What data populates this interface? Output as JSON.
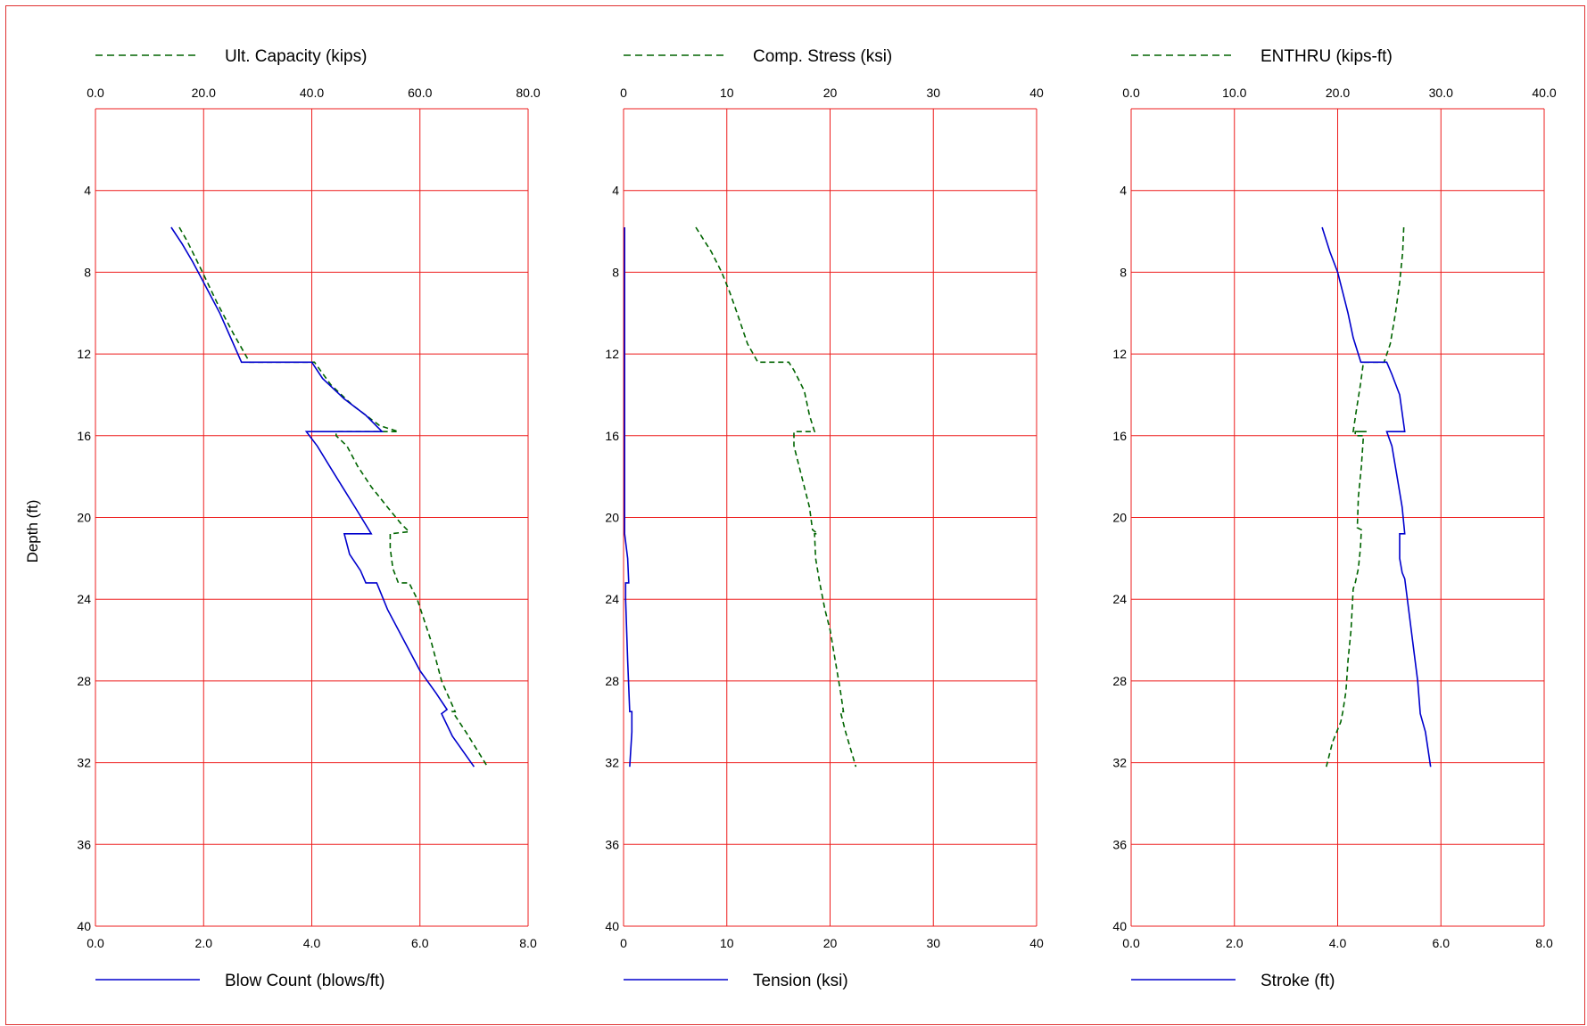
{
  "depth_label": "Depth (ft)",
  "chart_data": [
    {
      "type": "line",
      "ylabel": "Depth (ft)",
      "ylim": [
        40,
        0
      ],
      "y_ticks": [
        "4",
        "8",
        "12",
        "16",
        "20",
        "24",
        "28",
        "32",
        "36",
        "40"
      ],
      "grid": true,
      "top_axis": {
        "label": "Ult. Capacity (kips)",
        "range": [
          0,
          80
        ],
        "ticks": [
          "0.0",
          "20.0",
          "40.0",
          "60.0",
          "80.0"
        ],
        "color": "#006400",
        "style": "dashed",
        "series": {
          "name": "Ult. Capacity (kips)",
          "points": [
            [
              15.5,
              5.8
            ],
            [
              17,
              6.5
            ],
            [
              19.8,
              8
            ],
            [
              22.5,
              9.5
            ],
            [
              25.5,
              11
            ],
            [
              28.5,
              12.4
            ],
            [
              40.5,
              12.4
            ],
            [
              43.5,
              13.5
            ],
            [
              47.5,
              14.5
            ],
            [
              52.5,
              15.5
            ],
            [
              56,
              15.8
            ],
            [
              52,
              15.8
            ],
            [
              44.5,
              15.8
            ],
            [
              44.5,
              16
            ],
            [
              46.5,
              16.5
            ],
            [
              48.5,
              17.5
            ],
            [
              51,
              18.5
            ],
            [
              54,
              19.5
            ],
            [
              56.5,
              20.3
            ],
            [
              58,
              20.7
            ],
            [
              54.5,
              20.8
            ],
            [
              54.5,
              21.5
            ],
            [
              55,
              22.5
            ],
            [
              56,
              23.2
            ],
            [
              58,
              23.2
            ],
            [
              59.5,
              24
            ],
            [
              62,
              26
            ],
            [
              64,
              28
            ],
            [
              66.5,
              29.5
            ],
            [
              66,
              29.5
            ],
            [
              68.5,
              30.5
            ],
            [
              72.5,
              32.2
            ]
          ]
        }
      },
      "bottom_axis": {
        "label": "Blow Count (blows/ft)",
        "range": [
          0,
          8
        ],
        "ticks": [
          "0.0",
          "2.0",
          "4.0",
          "6.0",
          "8.0"
        ],
        "color": "#0000cd",
        "style": "solid",
        "series": {
          "name": "Blow Count (blows/ft)",
          "points": [
            [
              1.4,
              5.8
            ],
            [
              1.6,
              6.6
            ],
            [
              1.8,
              7.5
            ],
            [
              2.0,
              8.5
            ],
            [
              2.3,
              10
            ],
            [
              2.7,
              12.4
            ],
            [
              4.0,
              12.4
            ],
            [
              4.2,
              13.2
            ],
            [
              4.6,
              14.2
            ],
            [
              5.0,
              15
            ],
            [
              5.3,
              15.8
            ],
            [
              3.9,
              15.8
            ],
            [
              4.1,
              16.5
            ],
            [
              4.4,
              17.8
            ],
            [
              4.8,
              19.5
            ],
            [
              5.1,
              20.8
            ],
            [
              4.6,
              20.8
            ],
            [
              4.7,
              21.8
            ],
            [
              4.9,
              22.6
            ],
            [
              5.0,
              23.2
            ],
            [
              5.2,
              23.2
            ],
            [
              5.4,
              24.5
            ],
            [
              5.7,
              26
            ],
            [
              6.0,
              27.5
            ],
            [
              6.3,
              28.6
            ],
            [
              6.5,
              29.4
            ],
            [
              6.4,
              29.6
            ],
            [
              6.6,
              30.7
            ],
            [
              7.0,
              32.2
            ]
          ]
        }
      }
    },
    {
      "type": "line",
      "ylabel": "Depth (ft)",
      "ylim": [
        40,
        0
      ],
      "y_ticks": [
        "4",
        "8",
        "12",
        "16",
        "20",
        "24",
        "28",
        "32",
        "36",
        "40"
      ],
      "grid": true,
      "top_axis": {
        "label": "Comp. Stress (ksi)",
        "range": [
          0,
          40
        ],
        "ticks": [
          "0",
          "10",
          "20",
          "30",
          "40"
        ],
        "color": "#006400",
        "style": "dashed",
        "series": {
          "name": "Comp. Stress (ksi)",
          "points": [
            [
              7,
              5.8
            ],
            [
              8.5,
              7
            ],
            [
              9.5,
              8
            ],
            [
              10.3,
              9
            ],
            [
              11,
              10
            ],
            [
              12,
              11.5
            ],
            [
              13,
              12.4
            ],
            [
              16,
              12.4
            ],
            [
              16.5,
              12.8
            ],
            [
              17.5,
              13.8
            ],
            [
              18,
              15
            ],
            [
              18.5,
              15.8
            ],
            [
              17.5,
              15.8
            ],
            [
              16.5,
              15.8
            ],
            [
              16.5,
              16.5
            ],
            [
              17,
              17.5
            ],
            [
              17.5,
              18.5
            ],
            [
              18,
              19.5
            ],
            [
              18.3,
              20.6
            ],
            [
              18.8,
              20.8
            ],
            [
              18.5,
              20.8
            ],
            [
              18.6,
              22
            ],
            [
              19,
              23.2
            ],
            [
              19.5,
              24.5
            ],
            [
              20,
              25.5
            ],
            [
              20.5,
              27
            ],
            [
              21,
              28.5
            ],
            [
              21.3,
              29.5
            ],
            [
              21,
              29.5
            ],
            [
              21.5,
              30.5
            ],
            [
              22.5,
              32.2
            ]
          ]
        }
      },
      "bottom_axis": {
        "label": "Tension (ksi)",
        "range": [
          0,
          40
        ],
        "ticks": [
          "0",
          "10",
          "20",
          "30",
          "40"
        ],
        "color": "#0000cd",
        "style": "solid",
        "series": {
          "name": "Tension (ksi)",
          "points": [
            [
              0.1,
              5.8
            ],
            [
              0.1,
              8
            ],
            [
              0.1,
              12
            ],
            [
              0.1,
              16
            ],
            [
              0.1,
              20
            ],
            [
              0.1,
              20.8
            ],
            [
              0.4,
              22
            ],
            [
              0.5,
              23.2
            ],
            [
              0.2,
              23.2
            ],
            [
              0.2,
              24
            ],
            [
              0.4,
              27
            ],
            [
              0.6,
              29.5
            ],
            [
              0.8,
              29.5
            ],
            [
              0.8,
              30.5
            ],
            [
              0.6,
              32.2
            ]
          ]
        }
      }
    },
    {
      "type": "line",
      "ylabel": "Depth (ft)",
      "ylim": [
        40,
        0
      ],
      "y_ticks": [
        "4",
        "8",
        "12",
        "16",
        "20",
        "24",
        "28",
        "32",
        "36",
        "40"
      ],
      "grid": true,
      "top_axis": {
        "label": "ENTHRU (kips-ft)",
        "range": [
          0,
          40
        ],
        "ticks": [
          "0.0",
          "10.0",
          "20.0",
          "30.0",
          "40.0"
        ],
        "color": "#006400",
        "style": "dashed",
        "series": {
          "name": "ENTHRU (kips-ft)",
          "points": [
            [
              26.4,
              5.8
            ],
            [
              26.3,
              7
            ],
            [
              26,
              8.5
            ],
            [
              25.6,
              10
            ],
            [
              25.1,
              11.5
            ],
            [
              24.5,
              12.4
            ],
            [
              22.5,
              12.4
            ],
            [
              22.2,
              13.5
            ],
            [
              21.8,
              14.8
            ],
            [
              21.5,
              15.8
            ],
            [
              22.8,
              15.8
            ],
            [
              21.7,
              15.8
            ],
            [
              21.7,
              16
            ],
            [
              22.5,
              16
            ],
            [
              22.3,
              17.5
            ],
            [
              22,
              19
            ],
            [
              21.9,
              20.5
            ],
            [
              22.3,
              20.6
            ],
            [
              22.2,
              21.5
            ],
            [
              22,
              22.5
            ],
            [
              21.7,
              23.2
            ],
            [
              21.5,
              23.5
            ],
            [
              21.3,
              25.5
            ],
            [
              21,
              27
            ],
            [
              20.8,
              28.5
            ],
            [
              20.5,
              29.5
            ],
            [
              20.3,
              30
            ],
            [
              19.5,
              31
            ],
            [
              18.9,
              32.2
            ]
          ]
        }
      },
      "bottom_axis": {
        "label": "Stroke (ft)",
        "range": [
          0,
          8
        ],
        "ticks": [
          "0.0",
          "2.0",
          "4.0",
          "6.0",
          "8.0"
        ],
        "color": "#0000cd",
        "style": "solid",
        "series": {
          "name": "Stroke (ft)",
          "points": [
            [
              3.7,
              5.8
            ],
            [
              3.85,
              7
            ],
            [
              4.0,
              8
            ],
            [
              4.1,
              9
            ],
            [
              4.2,
              10
            ],
            [
              4.3,
              11.2
            ],
            [
              4.45,
              12.4
            ],
            [
              4.95,
              12.4
            ],
            [
              5.05,
              13
            ],
            [
              5.2,
              14
            ],
            [
              5.3,
              15.8
            ],
            [
              4.95,
              15.8
            ],
            [
              5.05,
              16.5
            ],
            [
              5.15,
              18
            ],
            [
              5.25,
              19.5
            ],
            [
              5.3,
              20.8
            ],
            [
              5.2,
              20.8
            ],
            [
              5.2,
              22
            ],
            [
              5.25,
              22.7
            ],
            [
              5.3,
              23
            ],
            [
              5.35,
              24
            ],
            [
              5.45,
              26
            ],
            [
              5.55,
              28
            ],
            [
              5.6,
              29.6
            ],
            [
              5.7,
              30.5
            ],
            [
              5.8,
              32.2
            ]
          ]
        }
      }
    }
  ]
}
